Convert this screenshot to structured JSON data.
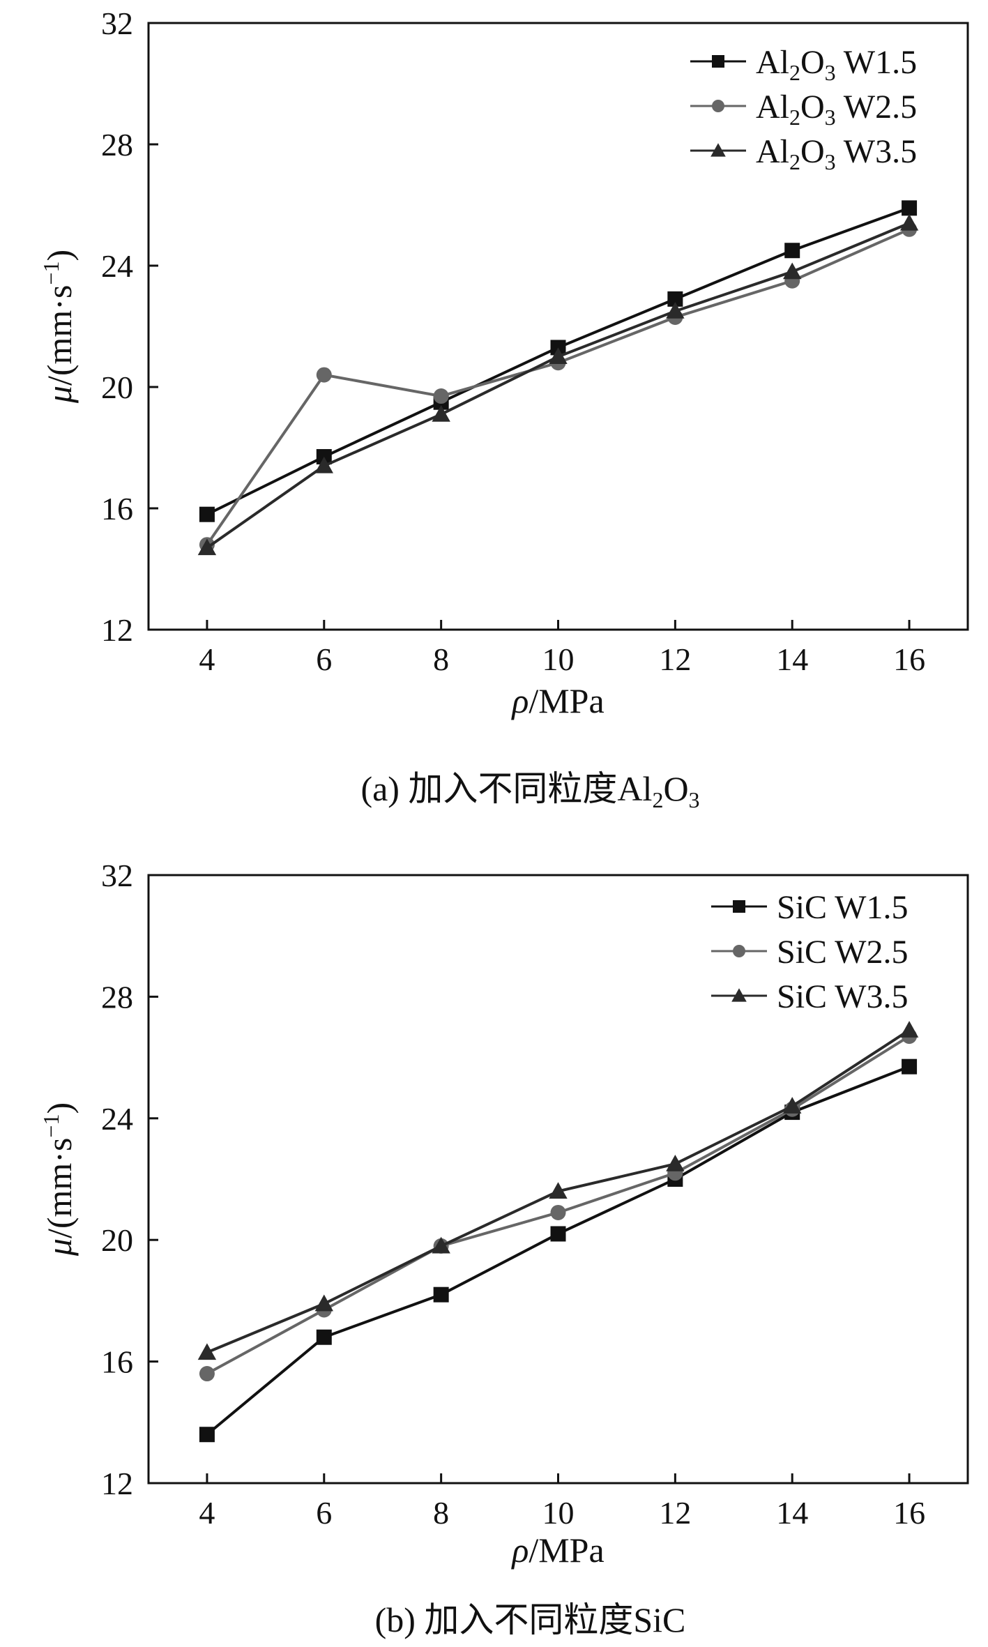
{
  "chart_data": [
    {
      "type": "line",
      "panel": "a",
      "caption_prefix": "(a) 加入不同粒度Al",
      "caption_sub1": "2",
      "caption_mid": "O",
      "caption_sub2": "3",
      "xlabel_symbol": "ρ",
      "xlabel_unit": "/MPa",
      "ylabel_symbol": "μ",
      "ylabel_unit": "/(mm·s",
      "ylabel_exp": "−1",
      "ylabel_close": ")",
      "xlim": [
        3,
        17
      ],
      "ylim": [
        12,
        32
      ],
      "x_ticks": [
        4,
        6,
        8,
        10,
        12,
        14,
        16
      ],
      "y_ticks": [
        12,
        16,
        20,
        24,
        28,
        32
      ],
      "x": [
        4,
        6,
        8,
        10,
        12,
        14,
        16
      ],
      "legend_position": "top-right",
      "series": [
        {
          "name": "Al2O3 W1.5",
          "label_parts": [
            "Al",
            "2",
            "O",
            "3",
            " W1.5"
          ],
          "marker": "square",
          "color": "#111111",
          "values": [
            15.8,
            17.7,
            19.5,
            21.3,
            22.9,
            24.5,
            25.9
          ]
        },
        {
          "name": "Al2O3 W2.5",
          "label_parts": [
            "Al",
            "2",
            "O",
            "3",
            " W2.5"
          ],
          "marker": "circle",
          "color": "#666666",
          "values": [
            14.8,
            20.4,
            19.7,
            20.8,
            22.3,
            23.5,
            25.2
          ]
        },
        {
          "name": "Al2O3 W3.5",
          "label_parts": [
            "Al",
            "2",
            "O",
            "3",
            " W3.5"
          ],
          "marker": "triangle",
          "color": "#2a2a2a",
          "values": [
            14.7,
            17.4,
            19.1,
            21.0,
            22.5,
            23.8,
            25.4
          ]
        }
      ]
    },
    {
      "type": "line",
      "panel": "b",
      "caption": "(b)  加入不同粒度SiC",
      "xlabel_symbol": "ρ",
      "xlabel_unit": "/MPa",
      "ylabel_symbol": "μ",
      "ylabel_unit": "/(mm·s",
      "ylabel_exp": "−1",
      "ylabel_close": ")",
      "xlim": [
        3,
        17
      ],
      "ylim": [
        12,
        32
      ],
      "x_ticks": [
        4,
        6,
        8,
        10,
        12,
        14,
        16
      ],
      "y_ticks": [
        12,
        16,
        20,
        24,
        28,
        32
      ],
      "x": [
        4,
        6,
        8,
        10,
        12,
        14,
        16
      ],
      "legend_position": "top-right",
      "series": [
        {
          "name": "SiC W1.5",
          "label_parts": [
            "SiC W1.5"
          ],
          "marker": "square",
          "color": "#111111",
          "values": [
            13.6,
            16.8,
            18.2,
            20.2,
            22.0,
            24.2,
            25.7
          ]
        },
        {
          "name": "SiC W2.5",
          "label_parts": [
            "SiC W2.5"
          ],
          "marker": "circle",
          "color": "#666666",
          "values": [
            15.6,
            17.7,
            19.8,
            20.9,
            22.2,
            24.3,
            26.7
          ]
        },
        {
          "name": "SiC W3.5",
          "label_parts": [
            "SiC W3.5"
          ],
          "marker": "triangle",
          "color": "#2a2a2a",
          "values": [
            16.3,
            17.9,
            19.8,
            21.6,
            22.5,
            24.4,
            26.9
          ]
        }
      ]
    }
  ]
}
